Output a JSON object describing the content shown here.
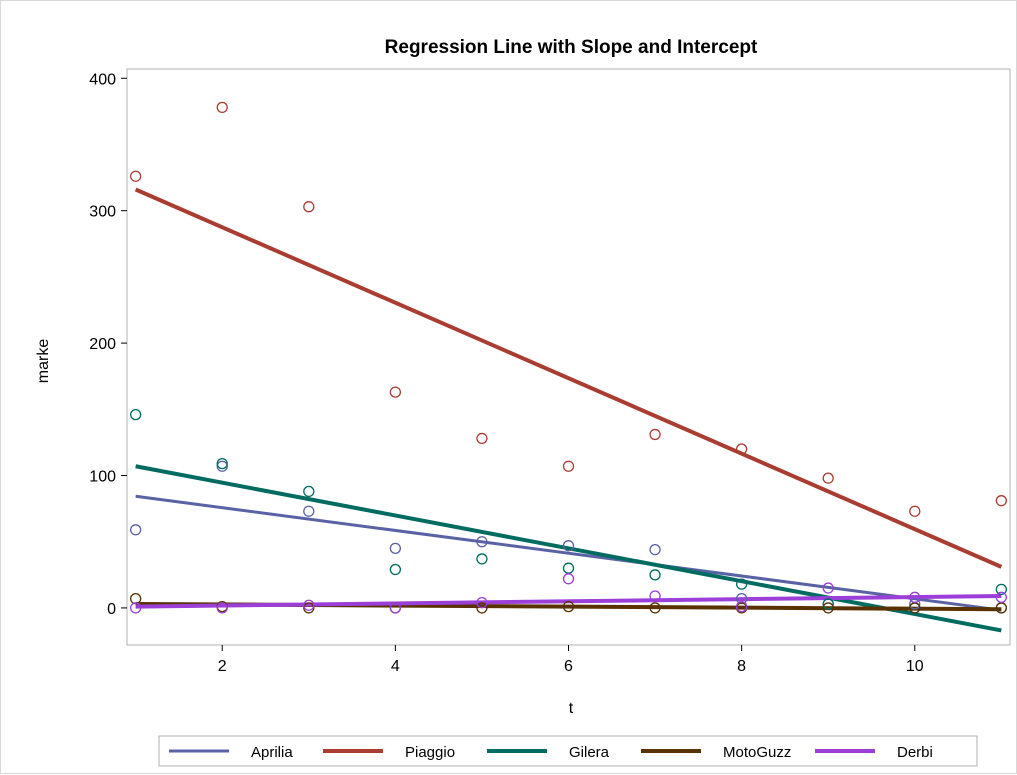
{
  "chart_data": {
    "type": "scatter",
    "title": "Regression Line with Slope and Intercept",
    "xlabel": "t",
    "ylabel": "marke",
    "xlim": [
      0.9,
      11.1
    ],
    "ylim": [
      -28,
      407
    ],
    "xticks": [
      "2",
      "4",
      "6",
      "8",
      "10"
    ],
    "yticks": [
      "0",
      "100",
      "200",
      "300",
      "400"
    ],
    "x": [
      1,
      2,
      3,
      4,
      5,
      6,
      7,
      8,
      9,
      10,
      11
    ],
    "grid": false,
    "legend_position": "bottom",
    "series": [
      {
        "name": "Aprilia",
        "color": "#5a62a6",
        "line_width": 3,
        "values": [
          59,
          107,
          73,
          45,
          50,
          47,
          44,
          7,
          3,
          3,
          0
        ],
        "fit": [
          84.3,
          -1.7
        ]
      },
      {
        "name": "Piaggio",
        "color": "#a93d32",
        "line_width": 4,
        "values": [
          326,
          378,
          303,
          163,
          128,
          107,
          131,
          120,
          98,
          73,
          81
        ],
        "fit": [
          316,
          31
        ]
      },
      {
        "name": "Gilera",
        "color": "#006b60",
        "line_width": 4,
        "values": [
          146,
          109,
          88,
          29,
          37,
          30,
          25,
          18,
          3,
          0,
          14
        ],
        "fit": [
          107,
          -17
        ]
      },
      {
        "name": "MotoGuzz",
        "color": "#5a3200",
        "line_width": 4,
        "values": [
          7,
          1,
          0,
          0,
          0,
          1,
          0,
          0,
          0,
          0,
          0
        ],
        "fit": [
          3,
          -1
        ]
      },
      {
        "name": "Derbi",
        "color": "#9b3fd8",
        "line_width": 4,
        "values": [
          0,
          0,
          2,
          0,
          4,
          22,
          9,
          1,
          15,
          8,
          8
        ],
        "fit": [
          1,
          9
        ]
      }
    ]
  }
}
